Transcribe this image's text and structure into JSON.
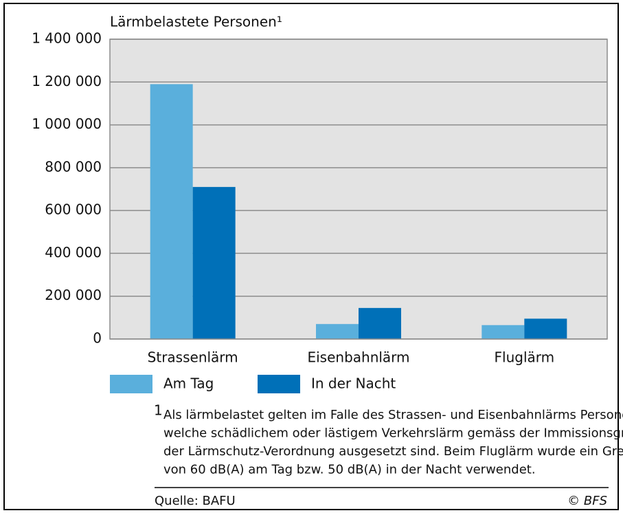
{
  "chart_data": {
    "type": "bar",
    "title": "Lärmbelastete Personen¹",
    "categories": [
      "Strassenlärm",
      "Eisenbahnlärm",
      "Fluglärm"
    ],
    "series": [
      {
        "name": "Am Tag",
        "color": "#5aafdc",
        "values": [
          1190000,
          70000,
          65000
        ]
      },
      {
        "name": "In der Nacht",
        "color": "#0070b8",
        "values": [
          710000,
          145000,
          95000
        ]
      }
    ],
    "ylim": [
      0,
      1400000
    ],
    "yticks": [
      0,
      {
        "value": 200000,
        "label": "200 000"
      },
      {
        "value": 400000,
        "label": "400 000"
      },
      {
        "value": 600000,
        "label": "600 000"
      },
      {
        "value": 800000,
        "label": "800 000"
      },
      {
        "value": 1000000,
        "label": "1 000 000"
      },
      {
        "value": 1200000,
        "label": "1 200 000"
      },
      {
        "value": 1400000,
        "label": "1 400 000"
      }
    ],
    "grid": true,
    "footnote_marker": "1",
    "footnote": [
      "Als lärmbelastet gelten im Falle des Strassen- und Eisenbahnlärms Personen,",
      "welche schädlichem oder lästigem Verkehrslärm gemäss der Immissionsgrenzwerte",
      "der Lärmschutz-Verordnung ausgesetzt sind. Beim Fluglärm wurde ein Grenzwert",
      "von 60 dB(A) am Tag bzw. 50 dB(A) in der Nacht verwendet."
    ],
    "source": "Quelle: BAFU",
    "copyright": "© BFS"
  }
}
